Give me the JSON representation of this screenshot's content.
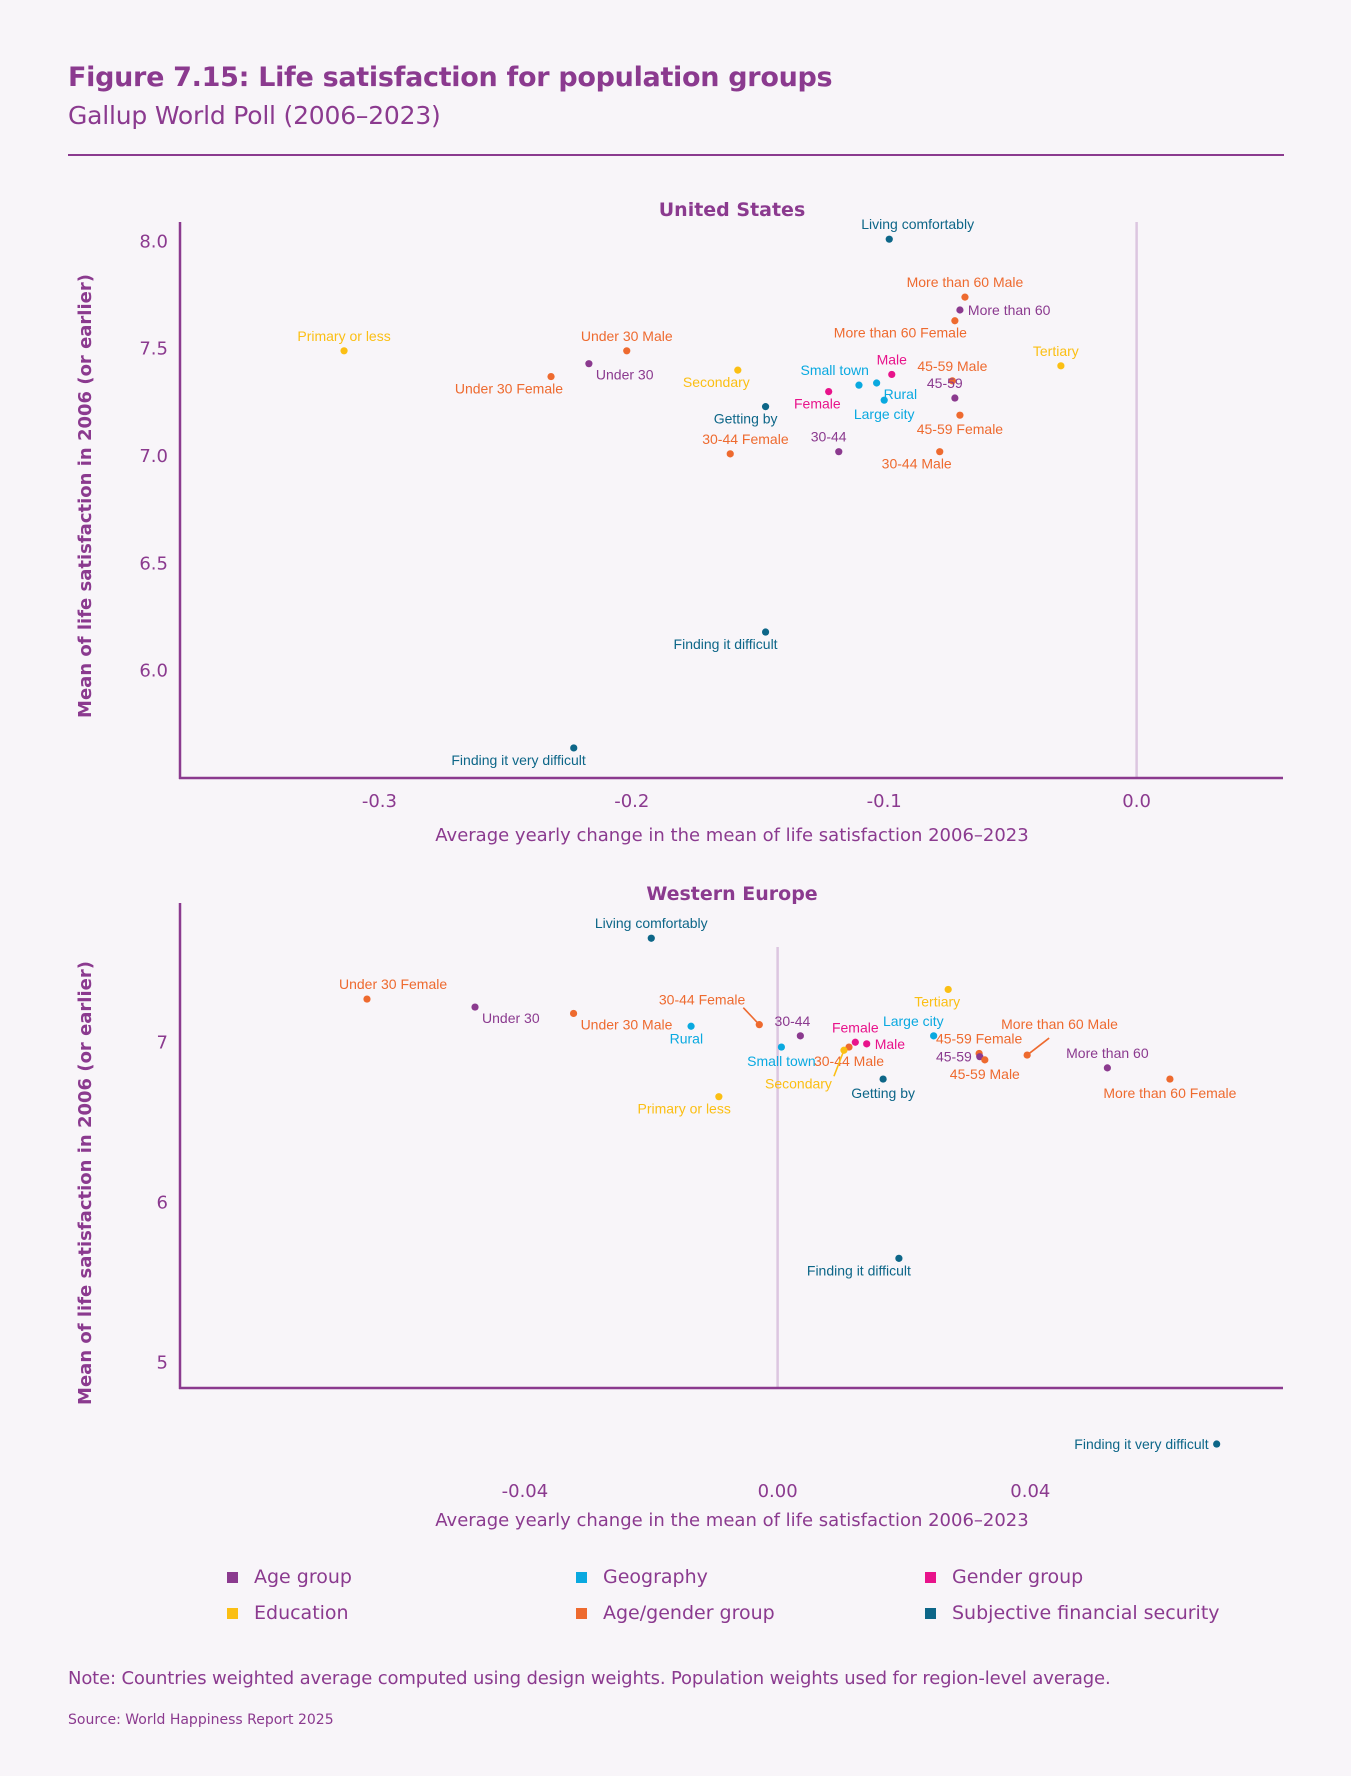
{
  "figure": {
    "title": "Figure 7.15: Life satisfaction for population groups",
    "subtitle": "Gallup World Poll (2006–2023)",
    "note": "Note: Countries weighted average computed using design weights. Population weights used for region-level average.",
    "source": "Source: World Happiness Report 2025"
  },
  "categories": {
    "age": {
      "label": "Age group",
      "color": "#8b3a8f"
    },
    "education": {
      "label": "Education",
      "color": "#fbbf14"
    },
    "geography": {
      "label": "Geography",
      "color": "#0aa9e0"
    },
    "agegender": {
      "label": "Age/gender group",
      "color": "#ee6a2f"
    },
    "gender": {
      "label": "Gender group",
      "color": "#e8138b"
    },
    "finance": {
      "label": "Subjective financial security",
      "color": "#0d6688"
    }
  },
  "legend": {
    "placement": "bottom",
    "items": [
      {
        "key": "age",
        "label": "Age group"
      },
      {
        "key": "geography",
        "label": "Geography"
      },
      {
        "key": "gender",
        "label": "Gender group"
      },
      {
        "key": "education",
        "label": "Education"
      },
      {
        "key": "agegender",
        "label": "Age/gender group"
      },
      {
        "key": "finance",
        "label": "Subjective financial security"
      }
    ]
  },
  "chart_data": [
    {
      "type": "scatter",
      "title": "United States",
      "xlabel": "Average yearly change in the mean of life satisfaction 2006–2023",
      "ylabel": "Mean of life satisfaction in 2006 (or earlier)",
      "xlim": [
        -0.379,
        0.058
      ],
      "ylim": [
        5.5,
        8.09
      ],
      "xticks": [
        -0.3,
        -0.2,
        -0.1,
        0.0
      ],
      "xtick_labels": [
        "-0.3",
        "-0.2",
        "-0.1",
        "0.0"
      ],
      "yticks": [
        6.0,
        6.5,
        7.0,
        7.5,
        8.0
      ],
      "ytick_labels": [
        "6.0",
        "6.5",
        "7.0",
        "7.5",
        "8.0"
      ],
      "reference_line_x": 0.0,
      "grid": false,
      "points": [
        {
          "label": "Living comfortably",
          "group": "finance",
          "x": -0.098,
          "y": 8.01,
          "label_pos": "above-right"
        },
        {
          "label": "More than 60 Male",
          "group": "agegender",
          "x": -0.068,
          "y": 7.74,
          "label_pos": "above"
        },
        {
          "label": "More than 60",
          "group": "age",
          "x": -0.07,
          "y": 7.68,
          "label_pos": "right"
        },
        {
          "label": "More than 60 Female",
          "group": "agegender",
          "x": -0.072,
          "y": 7.63,
          "label_pos": "below-left"
        },
        {
          "label": "Primary or less",
          "group": "education",
          "x": -0.314,
          "y": 7.49,
          "label_pos": "above"
        },
        {
          "label": "Under 30 Male",
          "group": "agegender",
          "x": -0.202,
          "y": 7.49,
          "label_pos": "above"
        },
        {
          "label": "Under 30",
          "group": "age",
          "x": -0.217,
          "y": 7.43,
          "label_pos": "below-right"
        },
        {
          "label": "Under 30 Female",
          "group": "agegender",
          "x": -0.232,
          "y": 7.37,
          "label_pos": "below-left"
        },
        {
          "label": "Tertiary",
          "group": "education",
          "x": -0.03,
          "y": 7.42,
          "label_pos": "above-right"
        },
        {
          "label": "Secondary",
          "group": "education",
          "x": -0.158,
          "y": 7.4,
          "label_pos": "below-left"
        },
        {
          "label": "Male",
          "group": "gender",
          "x": -0.097,
          "y": 7.38,
          "label_pos": "above"
        },
        {
          "label": "45-59 Male",
          "group": "agegender",
          "x": -0.073,
          "y": 7.35,
          "label_pos": "above"
        },
        {
          "label": "Rural",
          "group": "geography",
          "x": -0.103,
          "y": 7.34,
          "label_pos": "below-right"
        },
        {
          "label": "Small town",
          "group": "geography",
          "x": -0.11,
          "y": 7.33,
          "label_pos": "above-left"
        },
        {
          "label": "Female",
          "group": "gender",
          "x": -0.122,
          "y": 7.3,
          "label_pos": "below-left"
        },
        {
          "label": "45-59",
          "group": "age",
          "x": -0.072,
          "y": 7.27,
          "label_pos": "above-right"
        },
        {
          "label": "Large city",
          "group": "geography",
          "x": -0.1,
          "y": 7.26,
          "label_pos": "below"
        },
        {
          "label": "Getting by",
          "group": "finance",
          "x": -0.147,
          "y": 7.23,
          "label_pos": "below-left"
        },
        {
          "label": "45-59 Female",
          "group": "agegender",
          "x": -0.07,
          "y": 7.19,
          "label_pos": "below"
        },
        {
          "label": "30-44 Female",
          "group": "agegender",
          "x": -0.161,
          "y": 7.01,
          "label_pos": "above-right"
        },
        {
          "label": "30-44",
          "group": "age",
          "x": -0.118,
          "y": 7.02,
          "label_pos": "above-right"
        },
        {
          "label": "30-44 Male",
          "group": "agegender",
          "x": -0.078,
          "y": 7.02,
          "label_pos": "below-left"
        },
        {
          "label": "Finding it difficult",
          "group": "finance",
          "x": -0.147,
          "y": 6.18,
          "label_pos": "below-left"
        },
        {
          "label": "Finding it very difficult",
          "group": "finance",
          "x": -0.223,
          "y": 5.64,
          "label_pos": "below-left"
        }
      ]
    },
    {
      "type": "scatter",
      "title": "Western Europe",
      "xlabel": "Average yearly change in the mean of life satisfaction 2006–2023",
      "ylabel": "Mean of life satisfaction in 2006 (or earlier)",
      "xlim": [
        -0.0946,
        0.08
      ],
      "ylim": [
        4.84,
        7.87
      ],
      "xticks": [
        -0.04,
        0.0,
        0.04
      ],
      "xtick_labels": [
        "-0.04",
        "0.00",
        "0.04"
      ],
      "yticks": [
        5,
        6,
        7
      ],
      "ytick_labels": [
        "5",
        "6",
        "7"
      ],
      "reference_line_x": 0.0,
      "grid": false,
      "points": [
        {
          "label": "Living comfortably",
          "group": "finance",
          "x": -0.02,
          "y": 7.65,
          "label_pos": "above"
        },
        {
          "label": "Under 30 Female",
          "group": "agegender",
          "x": -0.065,
          "y": 7.27,
          "label_pos": "above-right"
        },
        {
          "label": "Under 30",
          "group": "age",
          "x": -0.0479,
          "y": 7.22,
          "label_pos": "below-right"
        },
        {
          "label": "Under 30 Male",
          "group": "agegender",
          "x": -0.0323,
          "y": 7.18,
          "label_pos": "below-right"
        },
        {
          "label": "Tertiary",
          "group": "education",
          "x": 0.027,
          "y": 7.33,
          "label_pos": "below-left"
        },
        {
          "label": "30-44 Female",
          "group": "agegender",
          "x": -0.0029,
          "y": 7.11,
          "label_pos": "leader-above-left"
        },
        {
          "label": "Rural",
          "group": "geography",
          "x": -0.0137,
          "y": 7.1,
          "label_pos": "below-left"
        },
        {
          "label": "30-44",
          "group": "age",
          "x": 0.0036,
          "y": 7.04,
          "label_pos": "above-left"
        },
        {
          "label": "Large city",
          "group": "geography",
          "x": 0.0247,
          "y": 7.04,
          "label_pos": "above-left"
        },
        {
          "label": "Female",
          "group": "gender",
          "x": 0.0123,
          "y": 7.0,
          "label_pos": "above"
        },
        {
          "label": "Male",
          "group": "gender",
          "x": 0.0141,
          "y": 6.99,
          "label_pos": "right"
        },
        {
          "label": "Small town",
          "group": "geography",
          "x": 0.0006,
          "y": 6.97,
          "label_pos": "below"
        },
        {
          "label": "30-44 Male",
          "group": "agegender",
          "x": 0.0113,
          "y": 6.97,
          "label_pos": "below"
        },
        {
          "label": "Secondary",
          "group": "education",
          "x": 0.0105,
          "y": 6.95,
          "label_pos": "leader-below-left"
        },
        {
          "label": "45-59 Female",
          "group": "agegender",
          "x": 0.0319,
          "y": 6.93,
          "label_pos": "above"
        },
        {
          "label": "More than 60 Male",
          "group": "agegender",
          "x": 0.0395,
          "y": 6.92,
          "label_pos": "leader-above-right"
        },
        {
          "label": "45-59",
          "group": "age",
          "x": 0.032,
          "y": 6.91,
          "label_pos": "left"
        },
        {
          "label": "45-59 Male",
          "group": "agegender",
          "x": 0.0328,
          "y": 6.89,
          "label_pos": "below"
        },
        {
          "label": "More than 60",
          "group": "age",
          "x": 0.0522,
          "y": 6.84,
          "label_pos": "above"
        },
        {
          "label": "Getting by",
          "group": "finance",
          "x": 0.0167,
          "y": 6.77,
          "label_pos": "below"
        },
        {
          "label": "More than 60 Female",
          "group": "agegender",
          "x": 0.0621,
          "y": 6.77,
          "label_pos": "below"
        },
        {
          "label": "Primary or less",
          "group": "education",
          "x": -0.0093,
          "y": 6.66,
          "label_pos": "below-left"
        },
        {
          "label": "Finding it difficult",
          "group": "finance",
          "x": 0.0192,
          "y": 5.65,
          "label_pos": "below-left"
        },
        {
          "label": "Finding it very difficult",
          "group": "finance",
          "x": 0.0695,
          "y": 4.49,
          "label_pos": "left"
        }
      ]
    }
  ]
}
